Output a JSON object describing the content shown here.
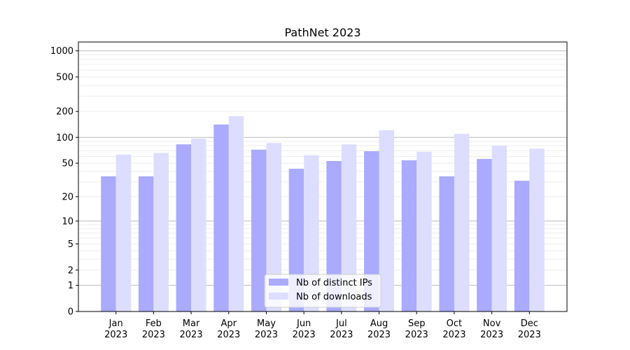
{
  "chart_data": {
    "type": "bar",
    "title": "PathNet 2023",
    "xlabel": "",
    "ylabel": "",
    "yscale": "log(1+y)",
    "ylim": [
      0,
      1200
    ],
    "yticks": [
      0,
      1,
      2,
      5,
      10,
      20,
      50,
      100,
      200,
      500,
      1000
    ],
    "grid": true,
    "legend_position": "bottom-center",
    "categories": [
      "Jan\n2023",
      "Feb\n2023",
      "Mar\n2023",
      "Apr\n2023",
      "May\n2023",
      "Jun\n2023",
      "Jul\n2023",
      "Aug\n2023",
      "Sep\n2023",
      "Oct\n2023",
      "Nov\n2023",
      "Dec\n2023"
    ],
    "series": [
      {
        "name": "Nb of distinct IPs",
        "color": "#aaaaff",
        "values": [
          35,
          35,
          83,
          141,
          72,
          43,
          53,
          69,
          54,
          35,
          56,
          31
        ]
      },
      {
        "name": "Nb of downloads",
        "color": "#ddddff",
        "values": [
          63,
          66,
          97,
          176,
          86,
          62,
          83,
          121,
          68,
          110,
          80,
          74
        ]
      }
    ]
  }
}
